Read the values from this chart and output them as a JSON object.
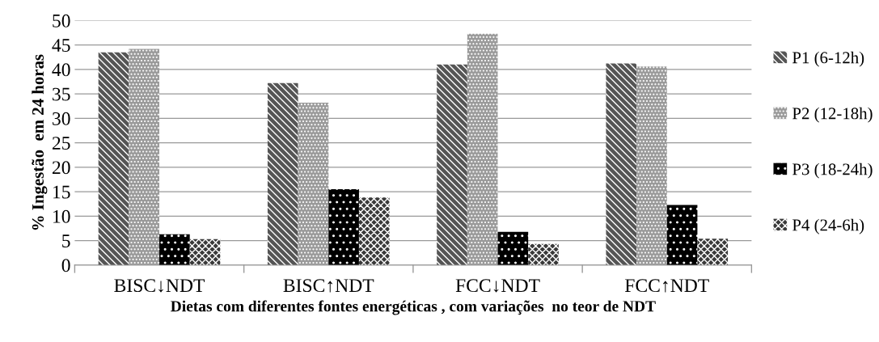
{
  "chart_data": {
    "type": "bar",
    "xlabel": "Dietas com diferentes fontes energéticas , com variações  no teor de NDT",
    "ylabel": "% Ingestão  em 24 horas",
    "categories": [
      "BISC↓NDT",
      "BISC↑NDT",
      "FCC↓NDT",
      "FCC↑NDT"
    ],
    "series": [
      {
        "name": "P1 (6-12h)",
        "color": "#555555",
        "values": [
          43.5,
          37.2,
          41.0,
          41.2
        ]
      },
      {
        "name": "P2 (12-18h)",
        "color": "#9a9a9a",
        "values": [
          44.2,
          33.2,
          47.3,
          40.6
        ]
      },
      {
        "name": "P3 (18-24h)",
        "color": "#000000",
        "values": [
          6.3,
          15.5,
          6.8,
          12.3
        ]
      },
      {
        "name": "P4 (24-6h)",
        "color": "#3a3a3a",
        "values": [
          5.3,
          13.8,
          4.3,
          5.4
        ]
      }
    ],
    "ylim": [
      0,
      50
    ],
    "yticks": [
      0,
      5,
      10,
      15,
      20,
      25,
      30,
      35,
      40,
      45,
      50
    ],
    "grid": "y",
    "legend": "right"
  }
}
